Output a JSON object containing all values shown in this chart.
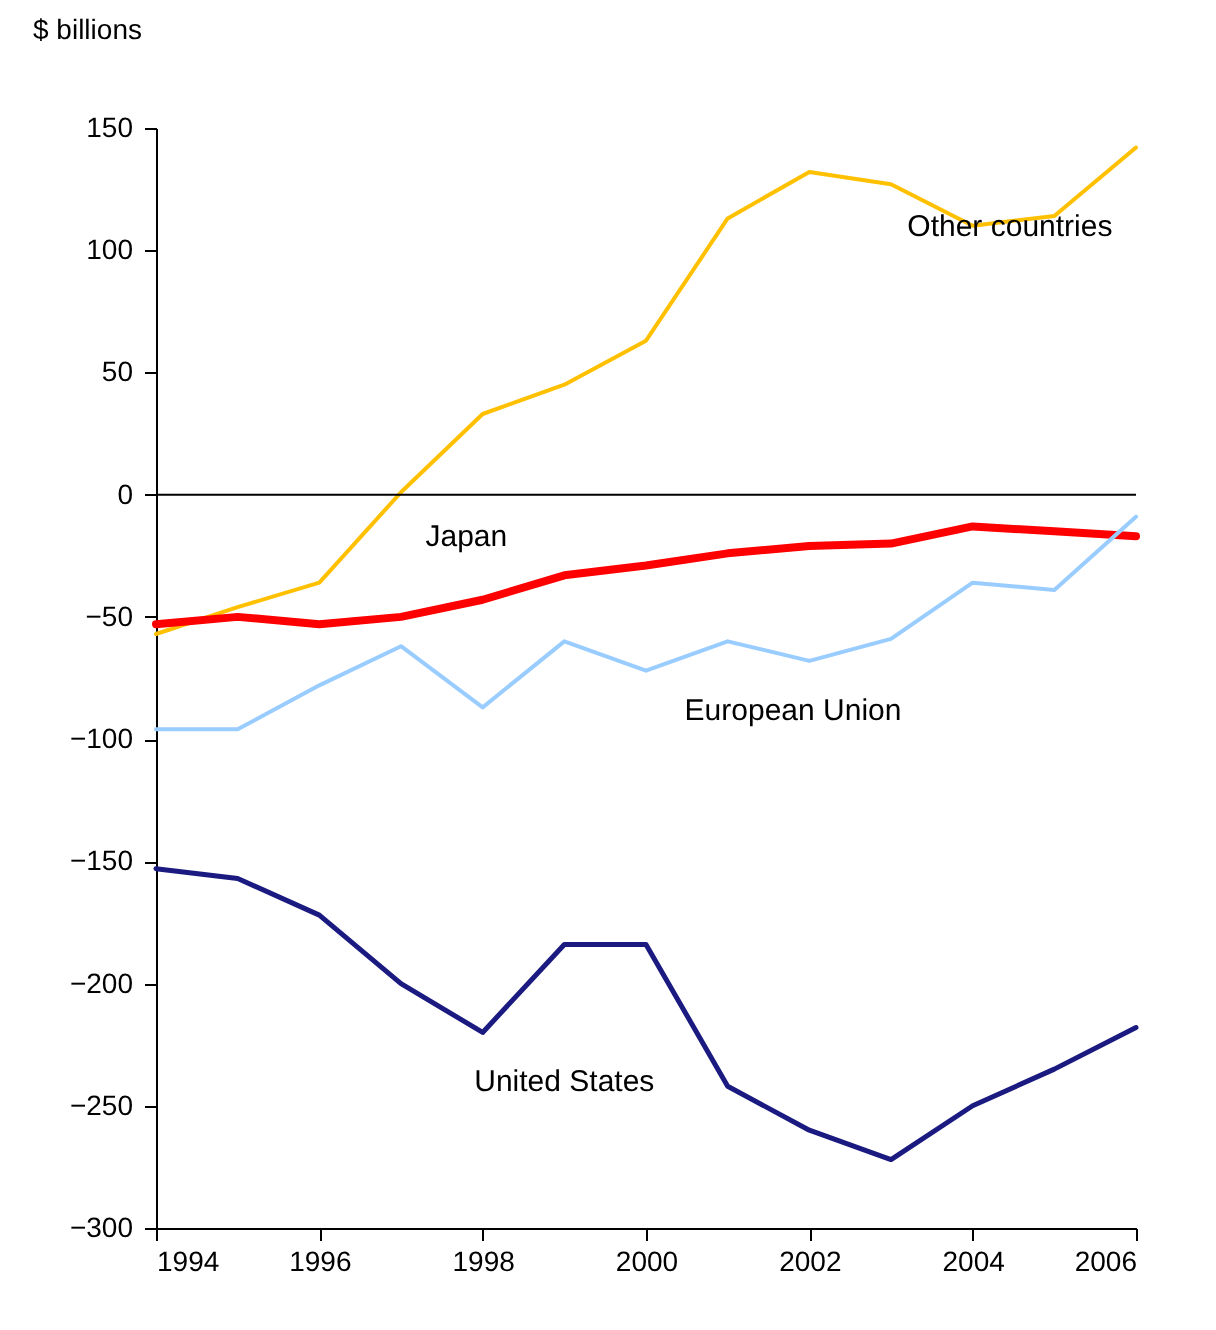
{
  "chart_data": {
    "type": "line",
    "ylabel": "$ billions",
    "x": [
      1994,
      1995,
      1996,
      1997,
      1998,
      1999,
      2000,
      2001,
      2002,
      2003,
      2004,
      2005,
      2006
    ],
    "series": [
      {
        "name": "Other countries",
        "color": "#ffc000",
        "values": [
          -57,
          -46,
          -36,
          1,
          33,
          45,
          63,
          113,
          132,
          127,
          110,
          114,
          142
        ]
      },
      {
        "name": "Japan",
        "color": "#ff0000",
        "values": [
          -53,
          -50,
          -53,
          -50,
          -43,
          -33,
          -29,
          -24,
          -21,
          -20,
          -13,
          -15,
          -17
        ]
      },
      {
        "name": "European Union",
        "color": "#99ccff",
        "values": [
          -96,
          -96,
          -78,
          -62,
          -87,
          -60,
          -72,
          -60,
          -68,
          -59,
          -36,
          -39,
          -9
        ]
      },
      {
        "name": "United States",
        "color": "#1a1a80",
        "values": [
          -153,
          -157,
          -172,
          -200,
          -220,
          -184,
          -184,
          -242,
          -260,
          -272,
          -250,
          -235,
          -218
        ]
      }
    ],
    "xlim": [
      1994,
      2006
    ],
    "xticks": [
      1994,
      1996,
      1998,
      2000,
      2002,
      2004,
      2006
    ],
    "ylim": [
      -300,
      150
    ],
    "yticks": [
      -300,
      -250,
      -200,
      -150,
      -100,
      -50,
      0,
      50,
      100,
      150
    ],
    "ref_lines": [
      {
        "axis": "y",
        "value": 0,
        "color": "#000000"
      }
    ],
    "grid": false,
    "legend": false,
    "line_style": "solid",
    "marker": "none"
  }
}
